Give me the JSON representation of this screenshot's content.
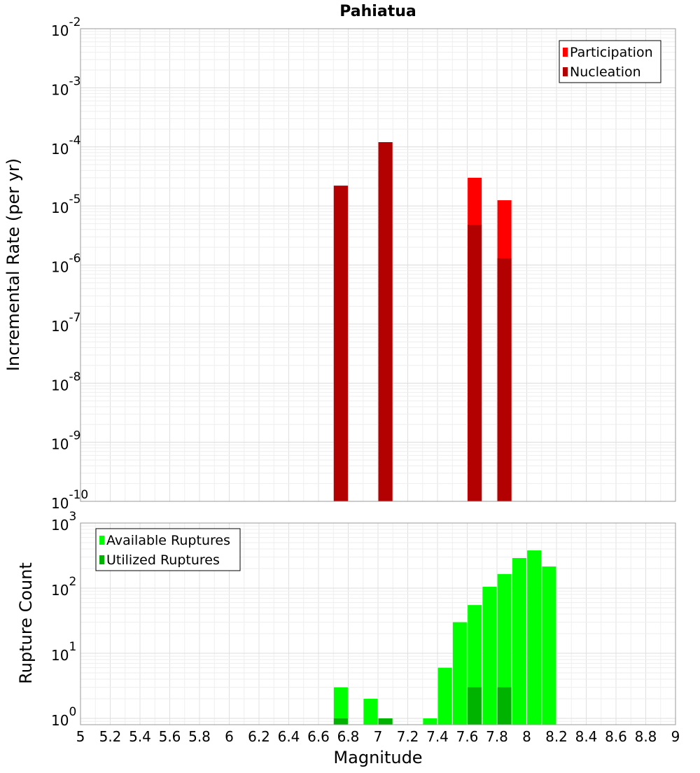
{
  "chart_data": [
    {
      "type": "bar",
      "title": "Pahiatua",
      "ylabel": "Incremental Rate (per yr)",
      "xlabel": "",
      "y_scale": "log",
      "ylim": [
        1e-10,
        0.01
      ],
      "xlim": [
        5,
        9
      ],
      "y_ticks": [
        {
          "base": "10",
          "exp": "-10",
          "value": 1e-10
        },
        {
          "base": "10",
          "exp": "-9",
          "value": 1e-09
        },
        {
          "base": "10",
          "exp": "-8",
          "value": 1e-08
        },
        {
          "base": "10",
          "exp": "-7",
          "value": 1e-07
        },
        {
          "base": "10",
          "exp": "-6",
          "value": 1e-06
        },
        {
          "base": "10",
          "exp": "-5",
          "value": 1e-05
        },
        {
          "base": "10",
          "exp": "-4",
          "value": 0.0001
        },
        {
          "base": "10",
          "exp": "-3",
          "value": 0.001
        },
        {
          "base": "10",
          "exp": "-2",
          "value": 0.01
        }
      ],
      "legend": {
        "placement": "top-right",
        "entries": [
          "Participation",
          "Nucleation"
        ]
      },
      "grid": true,
      "series": [
        {
          "name": "Participation",
          "color": "#ff0000",
          "x": [
            6.75,
            7.05,
            7.65,
            7.85
          ],
          "values": [
            2.2e-05,
            0.00012,
            3e-05,
            1.25e-05
          ]
        },
        {
          "name": "Nucleation",
          "color": "#b30000",
          "x": [
            6.75,
            7.05,
            7.65,
            7.85
          ],
          "values": [
            2.2e-05,
            0.00012,
            4.8e-06,
            1.3e-06
          ]
        }
      ]
    },
    {
      "type": "bar",
      "title": "",
      "ylabel": "Rupture Count",
      "xlabel": "Magnitude",
      "y_scale": "log",
      "ylim": [
        0.8,
        1000
      ],
      "xlim": [
        5,
        9
      ],
      "x_ticks": [
        "5",
        "5.2",
        "5.4",
        "5.6",
        "5.8",
        "6",
        "6.2",
        "6.4",
        "6.6",
        "6.8",
        "7",
        "7.2",
        "7.4",
        "7.6",
        "7.8",
        "8",
        "8.2",
        "8.4",
        "8.6",
        "8.8",
        "9"
      ],
      "y_ticks": [
        {
          "base": "10",
          "exp": "0",
          "value": 1
        },
        {
          "base": "10",
          "exp": "1",
          "value": 10
        },
        {
          "base": "10",
          "exp": "2",
          "value": 100
        },
        {
          "base": "10",
          "exp": "3",
          "value": 1000
        }
      ],
      "legend": {
        "placement": "top-left",
        "entries": [
          "Available Ruptures",
          "Utilized Ruptures"
        ]
      },
      "grid": true,
      "series": [
        {
          "name": "Available Ruptures",
          "color": "#00ff00",
          "x": [
            6.75,
            6.95,
            7.05,
            7.35,
            7.45,
            7.55,
            7.65,
            7.75,
            7.85,
            7.95,
            8.05,
            8.15
          ],
          "values": [
            3,
            2,
            1,
            1,
            6,
            30,
            55,
            105,
            165,
            290,
            380,
            215
          ]
        },
        {
          "name": "Utilized Ruptures",
          "color": "#00b300",
          "x": [
            6.75,
            7.05,
            7.65,
            7.85
          ],
          "values": [
            1,
            1,
            3,
            3
          ]
        }
      ]
    }
  ]
}
